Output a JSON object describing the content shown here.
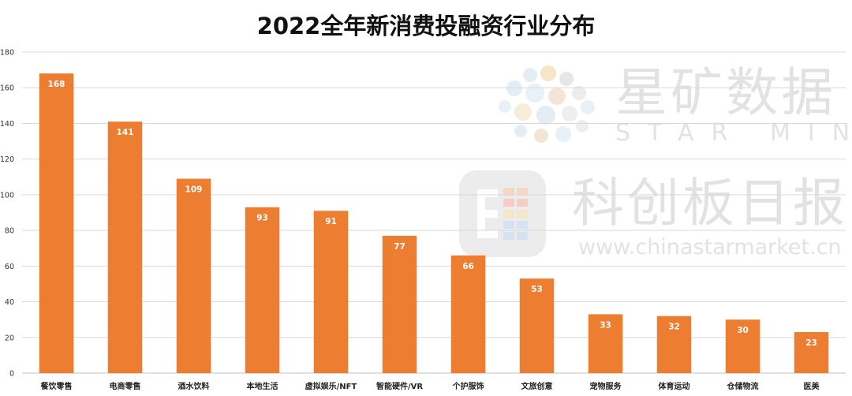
{
  "watermark": {
    "brand_cn": "星矿数据",
    "brand_en": "STAR MINE",
    "source_cn": "科创板日报",
    "source_url": "www.chinastarmarket.cn"
  },
  "colors": {
    "bar": "#ED7D31",
    "grid": "#D9D9D9",
    "axis": "#BFBFBF"
  },
  "chart_data": {
    "type": "bar",
    "title": "2022全年新消费投融资行业分布",
    "categories": [
      "餐饮零售",
      "电商零售",
      "酒水饮料",
      "本地生活",
      "虚拟娱乐/NFT",
      "智能硬件/VR",
      "个护服饰",
      "文旅创意",
      "宠物服务",
      "体育运动",
      "仓储物流",
      "医美"
    ],
    "values": [
      168,
      141,
      109,
      93,
      91,
      77,
      66,
      53,
      33,
      32,
      30,
      23
    ],
    "ylim": [
      0,
      180
    ],
    "yticks": [
      0,
      20,
      40,
      60,
      80,
      100,
      120,
      140,
      160,
      180
    ],
    "xlabel": "",
    "ylabel": "",
    "grid": true,
    "data_labels": "inside-top"
  }
}
